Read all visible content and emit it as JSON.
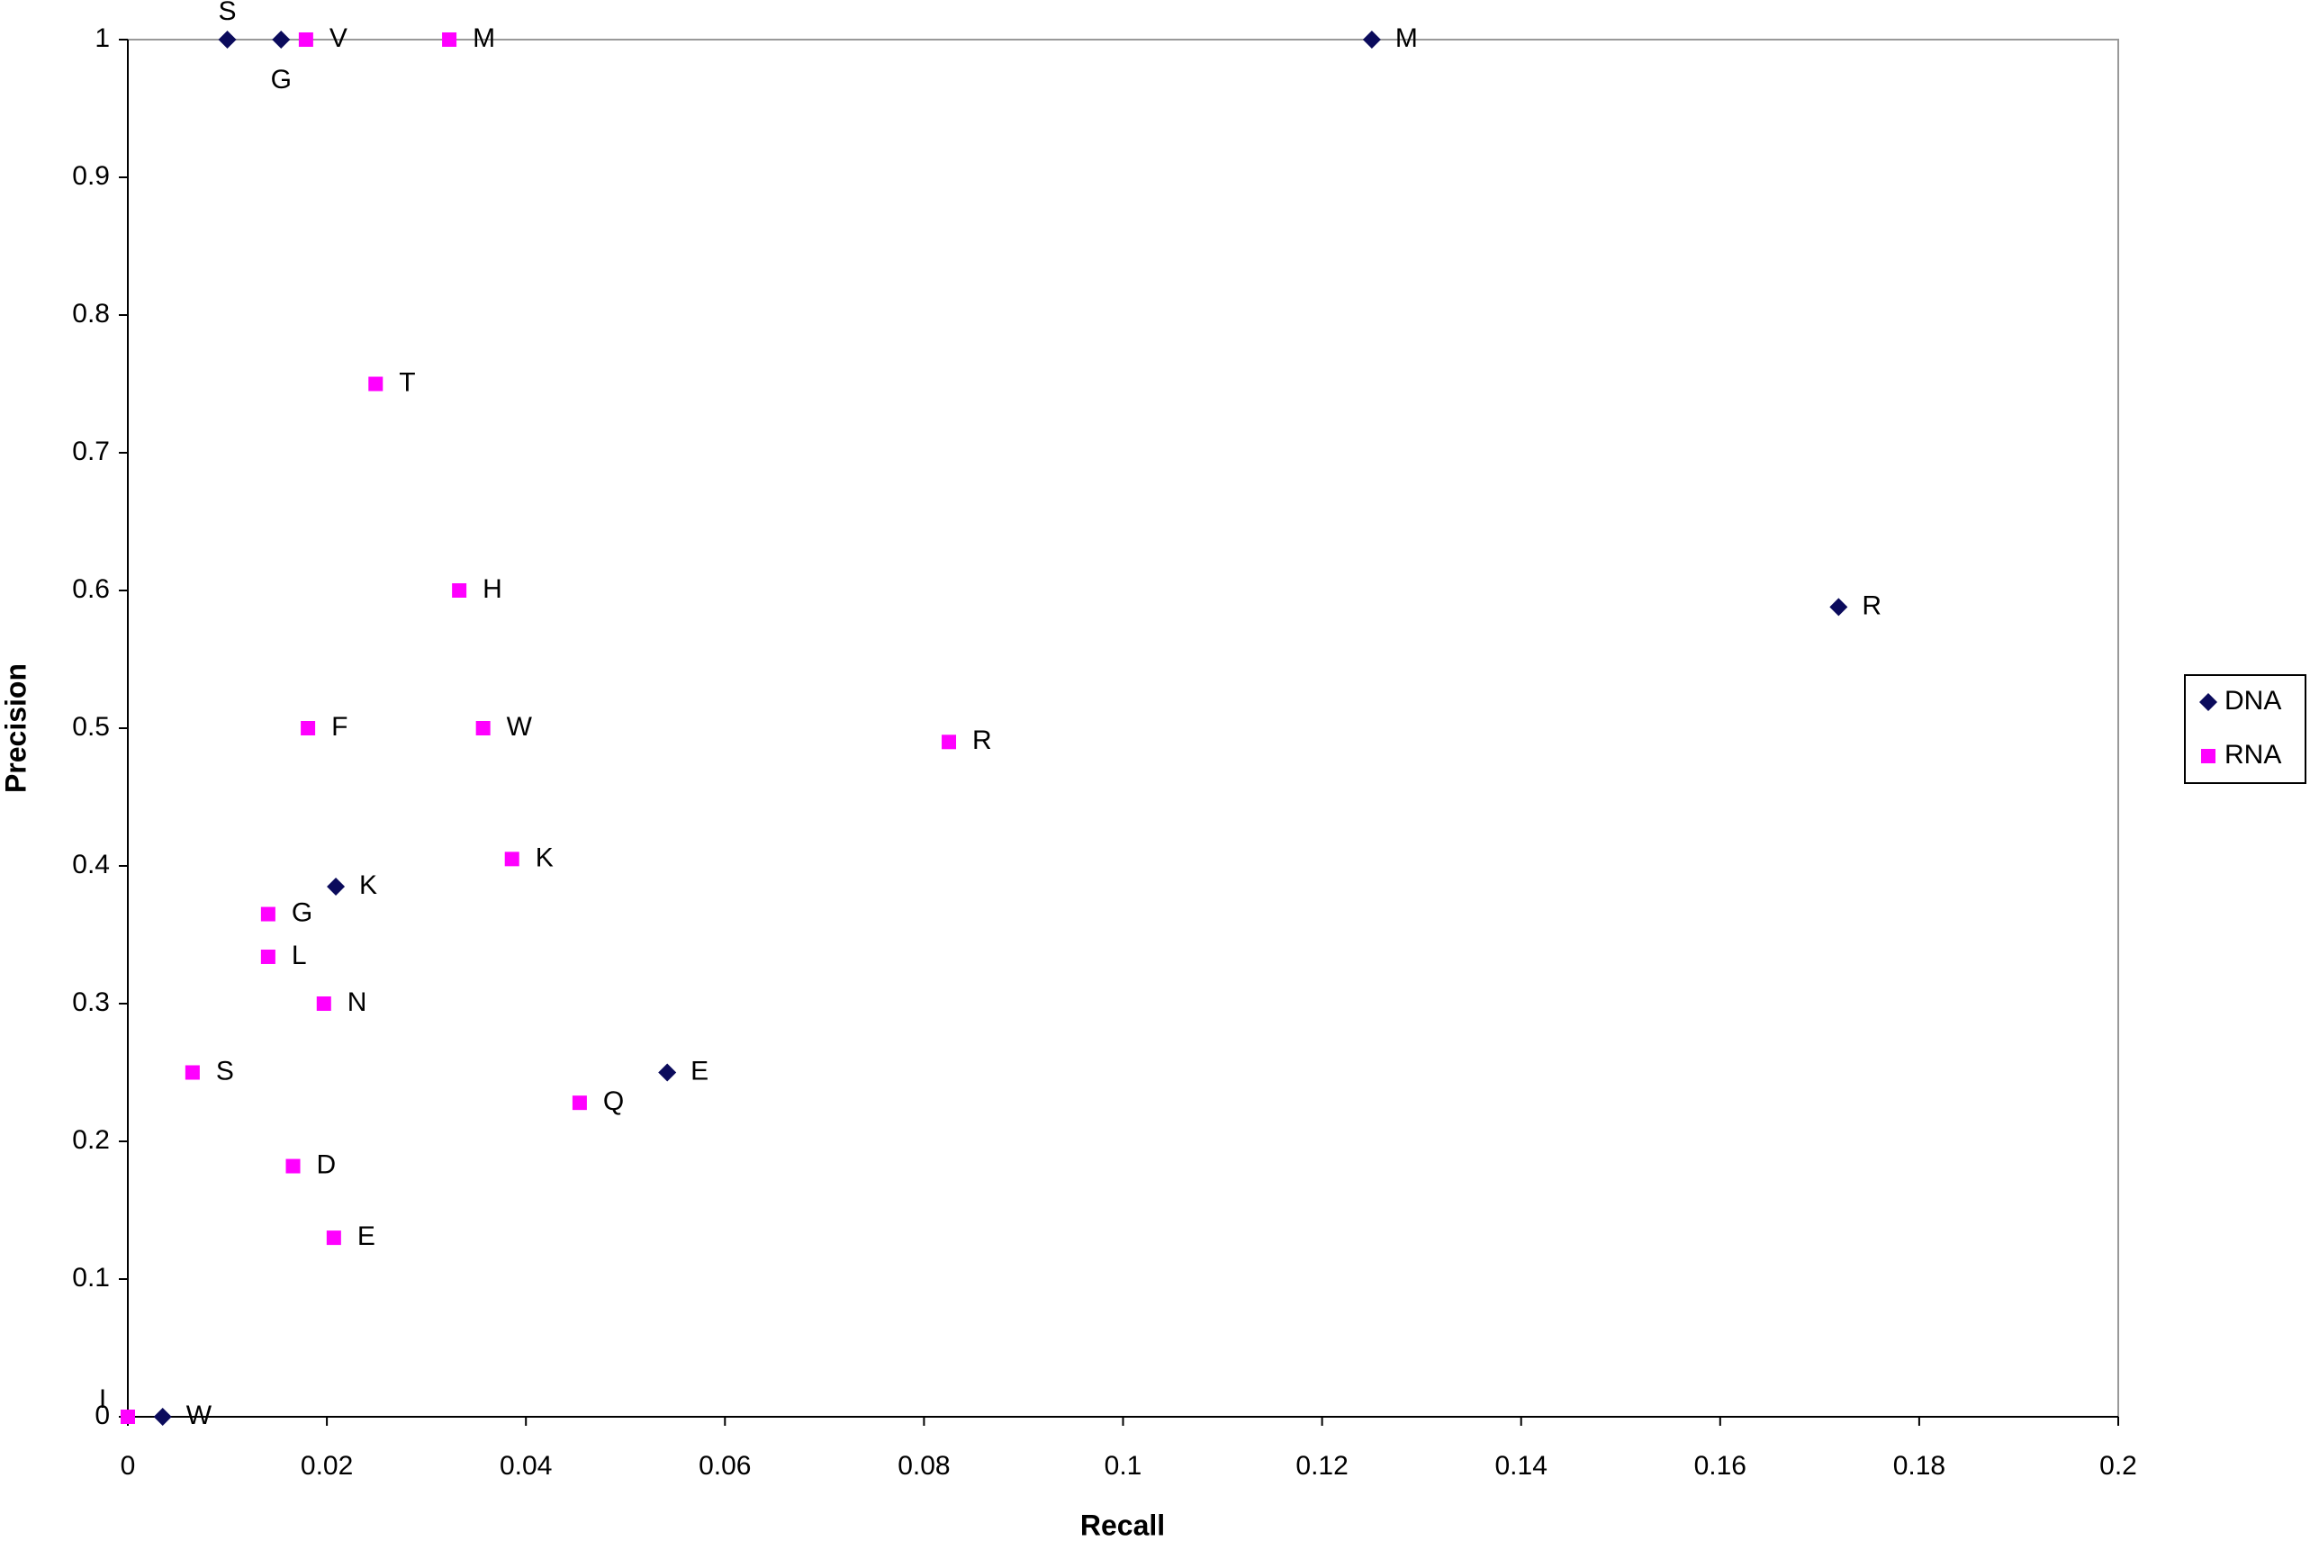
{
  "chart_data": {
    "type": "scatter",
    "x_label": "Recall",
    "y_label": "Precision",
    "xlim": [
      0,
      0.2
    ],
    "xticks": [
      0,
      0.02,
      0.04,
      0.06,
      0.08,
      0.1,
      0.12,
      0.14,
      0.16,
      0.18,
      0.2
    ],
    "ylim": [
      0,
      1
    ],
    "yticks": [
      0,
      0.1,
      0.2,
      0.3,
      0.4,
      0.5,
      0.6,
      0.7,
      0.8,
      0.9,
      1
    ],
    "grid": false,
    "legend": "right",
    "series": [
      {
        "name": "DNA",
        "color": "#0b0b5c",
        "marker": "diamond",
        "x": [
          0.01,
          0.0154,
          0.125,
          0.1719,
          0.0209,
          0.0542,
          0.0035
        ],
        "values": [
          1,
          1,
          1,
          0.588,
          0.385,
          0.25,
          0
        ],
        "labels": [
          "S",
          "G",
          "M",
          "R",
          "K",
          "E",
          "W"
        ]
      },
      {
        "name": "RNA",
        "color": "#ff00ff",
        "marker": "square",
        "x": [
          0.0179,
          0.0323,
          0.0249,
          0.0333,
          0.0181,
          0.0357,
          0.0825,
          0.0386,
          0.0141,
          0.0141,
          0.0197,
          0.0065,
          0.0454,
          0.0166,
          0.0207,
          0
        ],
        "values": [
          1,
          1,
          0.75,
          0.6,
          0.5,
          0.5,
          0.49,
          0.405,
          0.365,
          0.334,
          0.3,
          0.25,
          0.228,
          0.182,
          0.13,
          0
        ],
        "labels": [
          "V",
          "M",
          "T",
          "H",
          "F",
          "W",
          "R",
          "K",
          "G",
          "L",
          "N",
          "S",
          "Q",
          "D",
          "E",
          "I"
        ]
      }
    ]
  }
}
